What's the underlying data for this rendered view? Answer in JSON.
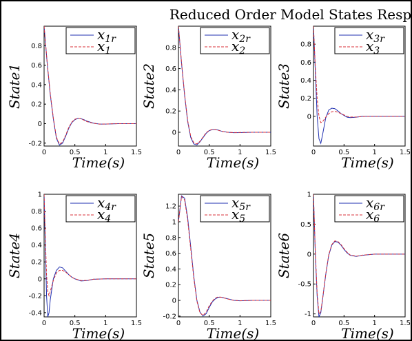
{
  "title": "Reduced Order Model States Response",
  "colors": {
    "reference": "#1f2fb0",
    "reduced": "#d9303a"
  },
  "chart_data": [
    {
      "type": "line",
      "ylabel": "State1",
      "xlabel": "Time(s)",
      "xlim": [
        0,
        1.5
      ],
      "ylim": [
        -0.23,
        1.0
      ],
      "xticks": [
        "0",
        "0.5",
        "1",
        "1.5"
      ],
      "yticks": [
        "-0.2",
        "0",
        "0.2",
        "0.4",
        "0.6",
        "0.8"
      ],
      "legend": [
        {
          "base": "x",
          "sub": "1r",
          "style": "solid"
        },
        {
          "base": "x",
          "sub": "1",
          "style": "dashed"
        }
      ],
      "series": [
        {
          "name": "x1r",
          "x": [
            0,
            0.05,
            0.1,
            0.15,
            0.2,
            0.25,
            0.3,
            0.35,
            0.4,
            0.45,
            0.5,
            0.55,
            0.6,
            0.65,
            0.7,
            0.8,
            0.9,
            1.0,
            1.2,
            1.5
          ],
          "y": [
            1.0,
            0.62,
            0.3,
            0.05,
            -0.15,
            -0.22,
            -0.2,
            -0.13,
            -0.05,
            0.01,
            0.04,
            0.055,
            0.05,
            0.04,
            0.025,
            0.005,
            -0.005,
            -0.005,
            0.0,
            0.0
          ]
        },
        {
          "name": "x1",
          "x": [
            0,
            0.05,
            0.1,
            0.15,
            0.2,
            0.25,
            0.3,
            0.35,
            0.4,
            0.45,
            0.5,
            0.55,
            0.6,
            0.65,
            0.7,
            0.8,
            0.9,
            1.0,
            1.2,
            1.5
          ],
          "y": [
            1.0,
            0.63,
            0.31,
            0.06,
            -0.14,
            -0.21,
            -0.19,
            -0.12,
            -0.04,
            0.015,
            0.045,
            0.055,
            0.05,
            0.035,
            0.02,
            0.003,
            -0.005,
            -0.004,
            0.0,
            0.0
          ]
        }
      ]
    },
    {
      "type": "line",
      "ylabel": "State2",
      "xlabel": "Time(s)",
      "xlim": [
        0,
        1.5
      ],
      "ylim": [
        -0.13,
        1.0
      ],
      "xticks": [
        "0",
        "0.5",
        "1",
        "1.5"
      ],
      "yticks": [
        "0",
        "0.2",
        "0.4",
        "0.6",
        "0.8"
      ],
      "legend": [
        {
          "base": "x",
          "sub": "2r",
          "style": "solid"
        },
        {
          "base": "x",
          "sub": "2",
          "style": "dashed"
        }
      ],
      "series": [
        {
          "name": "x2r",
          "x": [
            0,
            0.05,
            0.1,
            0.15,
            0.2,
            0.25,
            0.3,
            0.35,
            0.4,
            0.45,
            0.5,
            0.55,
            0.6,
            0.65,
            0.7,
            0.8,
            0.9,
            1.0,
            1.2,
            1.5
          ],
          "y": [
            1.0,
            0.65,
            0.35,
            0.1,
            -0.05,
            -0.11,
            -0.12,
            -0.09,
            -0.05,
            -0.01,
            0.015,
            0.025,
            0.025,
            0.02,
            0.01,
            0.0,
            -0.004,
            -0.003,
            0.0,
            0.0
          ]
        },
        {
          "name": "x2",
          "x": [
            0,
            0.05,
            0.1,
            0.15,
            0.2,
            0.25,
            0.3,
            0.35,
            0.4,
            0.45,
            0.5,
            0.55,
            0.6,
            0.65,
            0.7,
            0.8,
            0.9,
            1.0,
            1.2,
            1.5
          ],
          "y": [
            1.0,
            0.66,
            0.36,
            0.11,
            -0.04,
            -0.1,
            -0.11,
            -0.085,
            -0.045,
            -0.005,
            0.018,
            0.026,
            0.024,
            0.018,
            0.009,
            0.0,
            -0.003,
            -0.002,
            0.0,
            0.0
          ]
        }
      ]
    },
    {
      "type": "line",
      "ylabel": "State3",
      "xlabel": "Time(s)",
      "xlim": [
        0,
        1.5
      ],
      "ylim": [
        -0.33,
        1.0
      ],
      "xticks": [
        "0",
        "0.5",
        "1",
        "1.5"
      ],
      "yticks": [
        "0",
        "0.2",
        "0.4",
        "0.6",
        "0.8"
      ],
      "legend": [
        {
          "base": "x",
          "sub": "3r",
          "style": "solid"
        },
        {
          "base": "x",
          "sub": "3",
          "style": "dashed"
        }
      ],
      "series": [
        {
          "name": "x3r",
          "x": [
            0,
            0.03,
            0.06,
            0.09,
            0.12,
            0.15,
            0.2,
            0.25,
            0.3,
            0.35,
            0.4,
            0.45,
            0.5,
            0.55,
            0.6,
            0.7,
            0.8,
            1.0,
            1.2,
            1.5
          ],
          "y": [
            1.0,
            0.5,
            0.0,
            -0.25,
            -0.3,
            -0.2,
            -0.02,
            0.07,
            0.09,
            0.085,
            0.06,
            0.03,
            0.01,
            -0.01,
            -0.015,
            -0.01,
            0.0,
            0.0,
            0.0,
            0.0
          ]
        },
        {
          "name": "x3",
          "x": [
            0,
            0.03,
            0.06,
            0.09,
            0.12,
            0.15,
            0.2,
            0.25,
            0.3,
            0.35,
            0.4,
            0.45,
            0.5,
            0.55,
            0.6,
            0.7,
            0.8,
            1.0,
            1.2,
            1.5
          ],
          "y": [
            1.0,
            0.55,
            0.2,
            0.0,
            -0.07,
            -0.06,
            -0.01,
            0.03,
            0.05,
            0.055,
            0.045,
            0.03,
            0.015,
            0.0,
            -0.008,
            -0.008,
            -0.002,
            0.0,
            0.0,
            0.0
          ]
        }
      ]
    },
    {
      "type": "line",
      "ylabel": "State4",
      "xlabel": "Time(s)",
      "xlim": [
        0,
        1.5
      ],
      "ylim": [
        -0.45,
        1.0
      ],
      "xticks": [
        "0",
        "0.5",
        "1",
        "1.5"
      ],
      "yticks": [
        "-0.4",
        "-0.2",
        "0",
        "0.2",
        "0.4",
        "0.6",
        "0.8",
        "1"
      ],
      "legend": [
        {
          "base": "x",
          "sub": "4r",
          "style": "solid"
        },
        {
          "base": "x",
          "sub": "4",
          "style": "dashed"
        }
      ],
      "series": [
        {
          "name": "x4r",
          "x": [
            0,
            0.02,
            0.04,
            0.06,
            0.08,
            0.1,
            0.15,
            0.2,
            0.25,
            0.3,
            0.35,
            0.4,
            0.45,
            0.5,
            0.6,
            0.7,
            0.8,
            1.0,
            1.2,
            1.5
          ],
          "y": [
            1.0,
            0.4,
            -0.2,
            -0.45,
            -0.4,
            -0.25,
            0.0,
            0.1,
            0.14,
            0.13,
            0.09,
            0.05,
            0.02,
            0.0,
            -0.025,
            -0.02,
            -0.005,
            0.0,
            0.0,
            0.0
          ]
        },
        {
          "name": "x4",
          "x": [
            0,
            0.02,
            0.04,
            0.06,
            0.08,
            0.1,
            0.15,
            0.2,
            0.25,
            0.3,
            0.35,
            0.4,
            0.45,
            0.5,
            0.6,
            0.7,
            0.8,
            1.0,
            1.2,
            1.5
          ],
          "y": [
            1.0,
            0.5,
            0.05,
            -0.15,
            -0.2,
            -0.15,
            -0.02,
            0.07,
            0.1,
            0.1,
            0.08,
            0.05,
            0.02,
            0.0,
            -0.02,
            -0.018,
            -0.005,
            0.0,
            0.0,
            0.0
          ]
        }
      ]
    },
    {
      "type": "line",
      "ylabel": "State5",
      "xlabel": "Time(s)",
      "xlim": [
        0,
        1.5
      ],
      "ylim": [
        -0.21,
        1.35
      ],
      "xticks": [
        "0",
        "0.5",
        "1",
        "1.5"
      ],
      "yticks": [
        "-0.2",
        "0",
        "0.2",
        "0.4",
        "0.6",
        "0.8",
        "1",
        "1.2"
      ],
      "legend": [
        {
          "base": "x",
          "sub": "5r",
          "style": "solid"
        },
        {
          "base": "x",
          "sub": "5",
          "style": "dashed"
        }
      ],
      "series": [
        {
          "name": "x5r",
          "x": [
            0,
            0.05,
            0.1,
            0.15,
            0.2,
            0.25,
            0.3,
            0.35,
            0.4,
            0.45,
            0.5,
            0.55,
            0.6,
            0.65,
            0.7,
            0.8,
            0.9,
            1.0,
            1.2,
            1.5
          ],
          "y": [
            1.0,
            1.33,
            1.3,
            1.05,
            0.68,
            0.3,
            0.0,
            -0.15,
            -0.2,
            -0.17,
            -0.09,
            -0.02,
            0.02,
            0.04,
            0.04,
            0.02,
            0.0,
            -0.005,
            0.0,
            0.0
          ]
        },
        {
          "name": "x5",
          "x": [
            0,
            0.05,
            0.1,
            0.15,
            0.2,
            0.25,
            0.3,
            0.35,
            0.4,
            0.45,
            0.5,
            0.55,
            0.6,
            0.65,
            0.7,
            0.8,
            0.9,
            1.0,
            1.2,
            1.5
          ],
          "y": [
            1.0,
            1.32,
            1.28,
            1.02,
            0.65,
            0.28,
            -0.01,
            -0.16,
            -0.19,
            -0.15,
            -0.07,
            -0.01,
            0.03,
            0.045,
            0.04,
            0.018,
            0.0,
            -0.004,
            0.0,
            0.0
          ]
        }
      ]
    },
    {
      "type": "line",
      "ylabel": "State6",
      "xlabel": "Time(s)",
      "xlim": [
        0,
        1.5
      ],
      "ylim": [
        -1.05,
        1.0
      ],
      "xticks": [
        "0",
        "0.5",
        "1",
        "1.5"
      ],
      "yticks": [
        "-1",
        "-0.5",
        "0",
        "0.5",
        "1"
      ],
      "legend": [
        {
          "base": "x",
          "sub": "6r",
          "style": "solid"
        },
        {
          "base": "x",
          "sub": "6",
          "style": "dashed"
        }
      ],
      "series": [
        {
          "name": "x6r",
          "x": [
            0,
            0.03,
            0.06,
            0.09,
            0.12,
            0.15,
            0.2,
            0.25,
            0.3,
            0.35,
            0.4,
            0.45,
            0.5,
            0.55,
            0.6,
            0.7,
            0.8,
            1.0,
            1.2,
            1.5
          ],
          "y": [
            1.0,
            0.0,
            -0.7,
            -1.05,
            -0.98,
            -0.75,
            -0.35,
            -0.02,
            0.15,
            0.21,
            0.2,
            0.15,
            0.08,
            0.02,
            -0.02,
            -0.04,
            -0.02,
            0.0,
            0.0,
            0.0
          ]
        },
        {
          "name": "x6",
          "x": [
            0,
            0.03,
            0.06,
            0.09,
            0.12,
            0.15,
            0.2,
            0.25,
            0.3,
            0.35,
            0.4,
            0.45,
            0.5,
            0.55,
            0.6,
            0.7,
            0.8,
            1.0,
            1.2,
            1.5
          ],
          "y": [
            1.0,
            0.05,
            -0.65,
            -1.0,
            -0.96,
            -0.74,
            -0.34,
            -0.01,
            0.16,
            0.22,
            0.21,
            0.16,
            0.09,
            0.03,
            -0.015,
            -0.035,
            -0.018,
            0.0,
            0.0,
            0.0
          ]
        }
      ]
    }
  ]
}
